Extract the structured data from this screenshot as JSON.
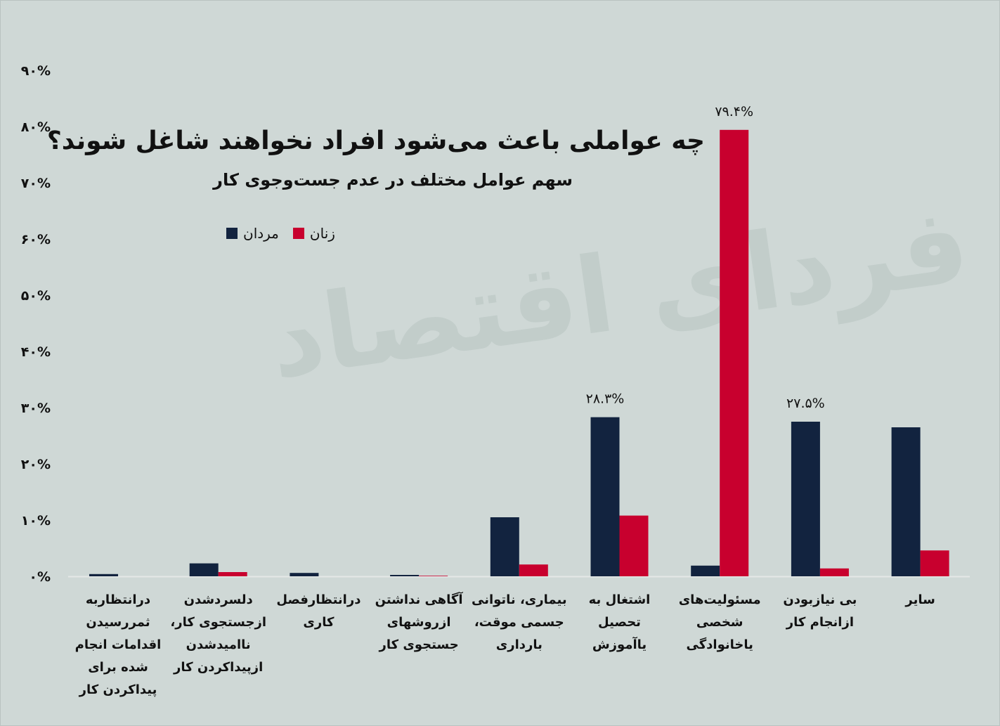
{
  "chart_data": {
    "type": "bar",
    "title": "چه عواملی باعث می‌شود افراد نخواهند شاغل شوند؟",
    "subtitle": "سهم عوامل مختلف در عدم جست‌وجوی کار",
    "categories": [
      "درانتظاربه\nثمررسیدن\nاقدامات انجام\nشده برای\nپیداکردن کار",
      "دلسردشدن\nازجستجوی کار،\nناامیدشدن\nازپیداکردن کار",
      "درانتظارفصل\nکاری",
      "آگاهی نداشتن\nازروشهای\nجستجوی کار",
      "بیماری، ناتوانی\nجسمی موقت،\nبارداری",
      "اشتغال به\nتحصیل\nیاآموزش",
      "مسئولیت‌های\nشخصی\nیاخانوادگی",
      "بی نیازبودن\nازانجام کار",
      "سایر"
    ],
    "series": [
      {
        "name": "مردان",
        "color": "#12233f",
        "values": [
          0.4,
          2.3,
          0.6,
          0.25,
          10.5,
          28.3,
          1.9,
          27.5,
          26.5
        ]
      },
      {
        "name": "زنان",
        "color": "#c8002e",
        "values": [
          0,
          0.75,
          0,
          0.1,
          2.1,
          10.8,
          79.4,
          1.4,
          4.6
        ]
      }
    ],
    "data_labels": [
      {
        "category_index": 5,
        "series_index": 0,
        "text": "۲۸.۳%"
      },
      {
        "category_index": 6,
        "series_index": 1,
        "text": "۷۹.۴%"
      },
      {
        "category_index": 7,
        "series_index": 0,
        "text": "۲۷.۵%"
      }
    ],
    "yticks": [
      0,
      10,
      20,
      30,
      40,
      50,
      60,
      70,
      80,
      90
    ],
    "ytick_labels": [
      "۰%",
      "۱۰%",
      "۲۰%",
      "۳۰%",
      "۴۰%",
      "۵۰%",
      "۶۰%",
      "۷۰%",
      "۸۰%",
      "۹۰%"
    ],
    "ylim": [
      0,
      90
    ],
    "grid": false,
    "legend": "top-left"
  },
  "watermark": "فردای اقتصاد"
}
